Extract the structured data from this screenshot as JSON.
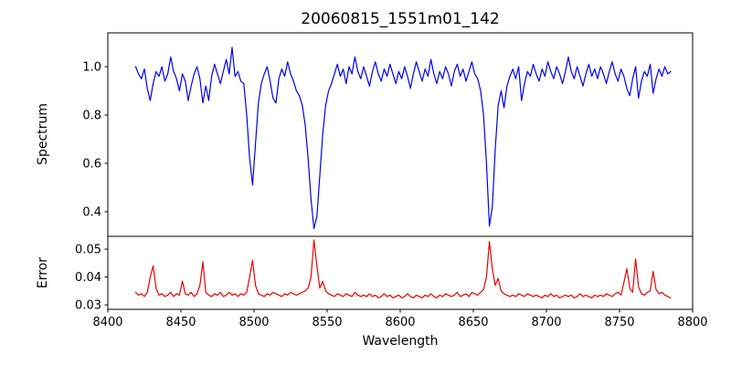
{
  "figure": {
    "title": "20060815_1551m01_142",
    "xlabel": "Wavelength"
  },
  "chart_data": [
    {
      "type": "line",
      "title": "20060815_1551m01_142",
      "ylabel": "Spectrum",
      "series_name": "spectrum",
      "color": "#0000ee",
      "grid": false,
      "legend": "none",
      "xlim": [
        8400,
        8800
      ],
      "ylim": [
        0.298,
        1.14
      ],
      "yticks": [
        0.4,
        0.6,
        0.8,
        1.0
      ],
      "yticklabels": [
        "0.4",
        "0.6",
        "0.8",
        "1.0"
      ],
      "x_start": 8419,
      "x_step": 2,
      "values": [
        1.0,
        0.97,
        0.95,
        0.99,
        0.91,
        0.86,
        0.93,
        0.98,
        0.96,
        1.0,
        0.94,
        0.97,
        1.04,
        0.98,
        0.95,
        0.9,
        0.97,
        0.94,
        0.86,
        0.92,
        0.97,
        1.0,
        0.95,
        0.85,
        0.92,
        0.86,
        0.96,
        1.01,
        0.97,
        0.93,
        0.98,
        1.03,
        0.97,
        1.08,
        0.96,
        0.98,
        0.94,
        0.93,
        0.8,
        0.62,
        0.51,
        0.68,
        0.85,
        0.93,
        0.97,
        1.0,
        0.94,
        0.87,
        0.85,
        0.95,
        0.99,
        0.96,
        1.02,
        0.97,
        0.94,
        0.9,
        0.88,
        0.84,
        0.76,
        0.62,
        0.45,
        0.33,
        0.38,
        0.55,
        0.72,
        0.84,
        0.9,
        0.93,
        0.97,
        1.01,
        0.96,
        0.99,
        0.93,
        1.0,
        0.97,
        1.04,
        0.98,
        0.95,
        1.0,
        0.96,
        0.92,
        0.98,
        1.02,
        0.97,
        0.94,
        0.99,
        0.96,
        1.01,
        0.97,
        0.93,
        0.98,
        0.95,
        1.0,
        0.96,
        0.91,
        0.97,
        1.02,
        0.98,
        0.94,
        0.99,
        0.96,
        1.03,
        0.97,
        0.93,
        0.98,
        0.95,
        1.0,
        0.97,
        0.92,
        0.98,
        1.01,
        0.96,
        0.99,
        0.94,
        0.98,
        1.02,
        0.97,
        0.95,
        0.9,
        0.8,
        0.6,
        0.34,
        0.42,
        0.66,
        0.84,
        0.9,
        0.83,
        0.92,
        0.96,
        0.99,
        0.95,
        1.0,
        0.86,
        0.93,
        0.98,
        0.96,
        1.01,
        0.97,
        0.94,
        0.99,
        0.96,
        1.02,
        0.98,
        0.95,
        1.0,
        0.97,
        0.93,
        0.98,
        1.04,
        0.98,
        0.95,
        1.0,
        0.96,
        0.92,
        0.97,
        1.01,
        0.96,
        0.99,
        0.95,
        1.0,
        0.97,
        0.93,
        0.98,
        1.02,
        0.97,
        0.94,
        0.99,
        0.96,
        0.91,
        0.88,
        0.95,
        1.0,
        0.87,
        0.94,
        0.98,
        0.96,
        1.01,
        0.89,
        0.95,
        0.99,
        0.96,
        1.0,
        0.97,
        0.98
      ]
    },
    {
      "type": "line",
      "ylabel": "Error",
      "xlabel": "Wavelength",
      "series_name": "error",
      "color": "#ee0000",
      "grid": false,
      "legend": "none",
      "xlim": [
        8400,
        8800
      ],
      "ylim": [
        0.0284,
        0.0546
      ],
      "yticks": [
        0.03,
        0.04,
        0.05
      ],
      "yticklabels": [
        "0.03",
        "0.04",
        "0.05"
      ],
      "xticks": [
        8400,
        8450,
        8500,
        8550,
        8600,
        8650,
        8700,
        8750,
        8800
      ],
      "xticklabels": [
        "8400",
        "8450",
        "8500",
        "8550",
        "8600",
        "8650",
        "8700",
        "8750",
        "8800"
      ],
      "x_start": 8419,
      "x_step": 2,
      "values": [
        0.0345,
        0.0335,
        0.034,
        0.033,
        0.0345,
        0.04,
        0.044,
        0.036,
        0.0335,
        0.034,
        0.033,
        0.0335,
        0.0345,
        0.033,
        0.034,
        0.0335,
        0.0385,
        0.034,
        0.0335,
        0.0345,
        0.033,
        0.034,
        0.037,
        0.0455,
        0.0345,
        0.0335,
        0.033,
        0.034,
        0.0335,
        0.0345,
        0.033,
        0.0335,
        0.0345,
        0.0335,
        0.034,
        0.033,
        0.034,
        0.0335,
        0.0345,
        0.04,
        0.046,
        0.037,
        0.034,
        0.0335,
        0.033,
        0.034,
        0.0335,
        0.0345,
        0.034,
        0.0335,
        0.033,
        0.034,
        0.0335,
        0.0345,
        0.034,
        0.0335,
        0.034,
        0.0345,
        0.035,
        0.036,
        0.04,
        0.0533,
        0.044,
        0.036,
        0.0385,
        0.035,
        0.034,
        0.0335,
        0.033,
        0.034,
        0.0335,
        0.033,
        0.034,
        0.0335,
        0.033,
        0.0345,
        0.0335,
        0.033,
        0.0335,
        0.033,
        0.034,
        0.033,
        0.0335,
        0.0325,
        0.033,
        0.034,
        0.033,
        0.0335,
        0.0325,
        0.033,
        0.0335,
        0.0325,
        0.033,
        0.034,
        0.033,
        0.0325,
        0.0335,
        0.033,
        0.0325,
        0.0335,
        0.033,
        0.034,
        0.033,
        0.0325,
        0.0335,
        0.033,
        0.034,
        0.0335,
        0.033,
        0.0335,
        0.0345,
        0.033,
        0.0335,
        0.034,
        0.033,
        0.0345,
        0.034,
        0.0335,
        0.0345,
        0.0355,
        0.04,
        0.0527,
        0.043,
        0.037,
        0.0395,
        0.035,
        0.034,
        0.0335,
        0.033,
        0.0335,
        0.033,
        0.034,
        0.0335,
        0.033,
        0.034,
        0.0335,
        0.033,
        0.0335,
        0.033,
        0.0325,
        0.0335,
        0.033,
        0.034,
        0.033,
        0.0335,
        0.0325,
        0.033,
        0.0335,
        0.033,
        0.0335,
        0.0325,
        0.033,
        0.034,
        0.033,
        0.0335,
        0.033,
        0.0325,
        0.0335,
        0.033,
        0.0335,
        0.033,
        0.034,
        0.0335,
        0.033,
        0.034,
        0.0345,
        0.0335,
        0.038,
        0.043,
        0.036,
        0.0345,
        0.0465,
        0.0365,
        0.034,
        0.0335,
        0.0345,
        0.035,
        0.042,
        0.0355,
        0.034,
        0.0345,
        0.0335,
        0.033,
        0.0325
      ]
    }
  ]
}
